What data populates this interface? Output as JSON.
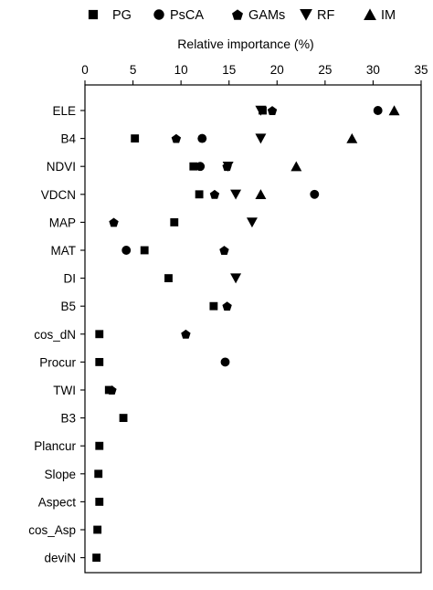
{
  "chart_data": {
    "type": "scatter",
    "xlabel": "Relative importance (%)",
    "x_axis_position": "top",
    "xlim": [
      0,
      35
    ],
    "xticks": [
      0,
      5,
      10,
      15,
      20,
      25,
      30,
      35
    ],
    "legend_position": "top",
    "categories": [
      "ELE",
      "B4",
      "NDVI",
      "VDCN",
      "MAP",
      "MAT",
      "DI",
      "B5",
      "cos_dN",
      "Procur",
      "TWI",
      "B3",
      "Plancur",
      "Slope",
      "Aspect",
      "cos_Asp",
      "deviN"
    ],
    "series": [
      {
        "name": "PG",
        "marker": "square",
        "values": [
          18.5,
          5.2,
          11.3,
          11.9,
          9.3,
          6.2,
          8.7,
          13.4,
          1.5,
          1.5,
          2.5,
          4.0,
          1.5,
          1.4,
          1.5,
          1.3,
          1.2
        ]
      },
      {
        "name": "PsCA",
        "marker": "circle",
        "values": [
          30.5,
          12.2,
          12.0,
          23.9,
          null,
          4.3,
          null,
          null,
          null,
          14.6,
          null,
          null,
          null,
          null,
          null,
          null,
          null
        ]
      },
      {
        "name": "GAMs",
        "marker": "pentagon",
        "values": [
          19.5,
          9.5,
          14.8,
          13.5,
          3.0,
          14.5,
          null,
          14.8,
          10.5,
          null,
          2.8,
          null,
          null,
          null,
          null,
          null,
          null
        ]
      },
      {
        "name": "RF",
        "marker": "triangle-down",
        "values": [
          18.3,
          18.3,
          14.9,
          15.7,
          17.4,
          null,
          15.7,
          null,
          null,
          null,
          null,
          null,
          null,
          null,
          null,
          null,
          null
        ]
      },
      {
        "name": "IM",
        "marker": "triangle-up",
        "values": [
          32.2,
          27.8,
          22.0,
          18.3,
          null,
          null,
          null,
          null,
          null,
          null,
          null,
          null,
          null,
          null,
          null,
          null,
          null
        ]
      }
    ]
  }
}
